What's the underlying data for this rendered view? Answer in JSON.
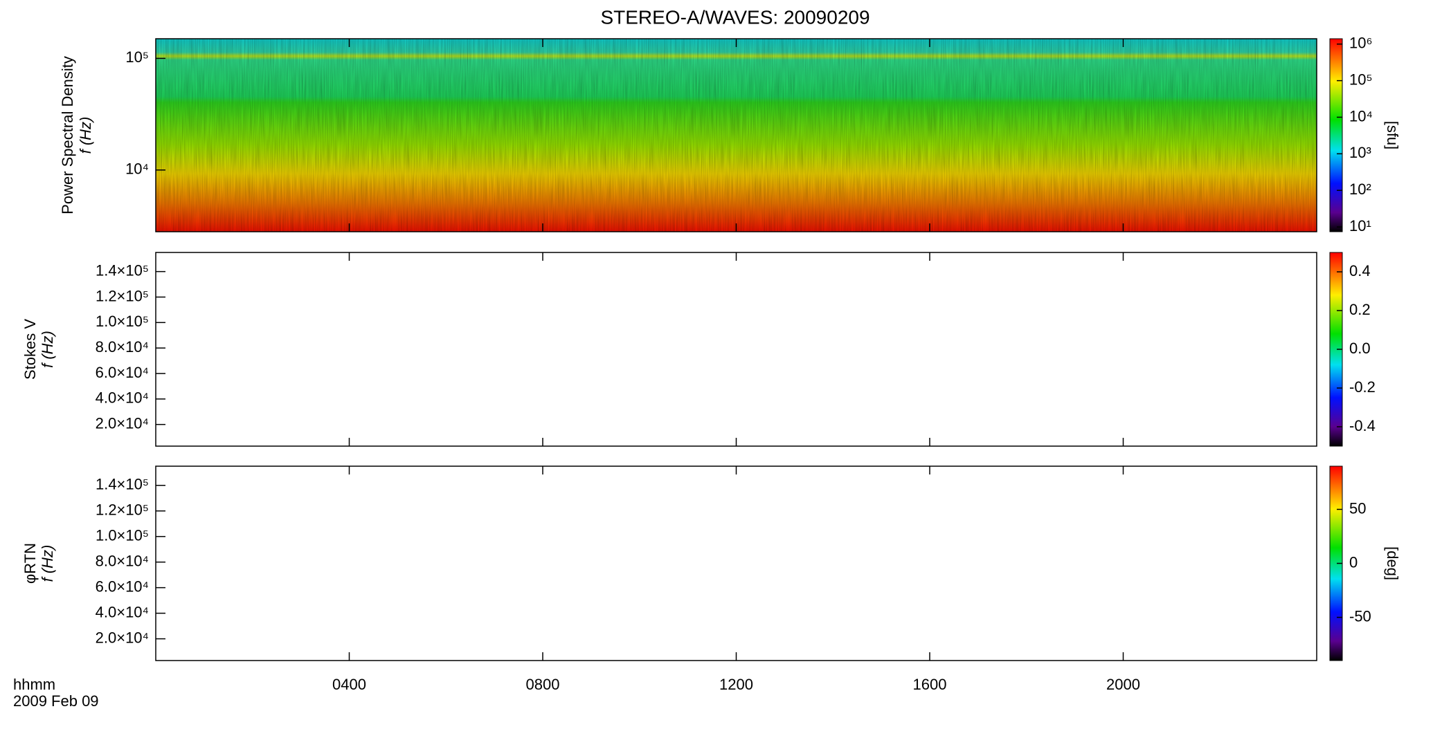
{
  "title": "STEREO-A/WAVES: 20090209",
  "x_label": "hhmm",
  "date_label": "2009 Feb 09",
  "chart_data": [
    {
      "type": "heatmap",
      "y_label": "Power Spectral Density",
      "y_unit": "f (Hz)",
      "log_y": true,
      "ylim": [
        2800,
        150000
      ],
      "yticks": [
        {
          "value": 10000,
          "label": "10⁴"
        },
        {
          "value": 100000,
          "label": "10⁵"
        }
      ],
      "colorbar": {
        "log": true,
        "lim": [
          7.4,
          1400000
        ],
        "label": "[sfu]",
        "ticks": [
          {
            "value": 10,
            "label": "10¹"
          },
          {
            "value": 100,
            "label": "10²"
          },
          {
            "value": 1000,
            "label": "10³"
          },
          {
            "value": 10000,
            "label": "10⁴"
          },
          {
            "value": 100000,
            "label": "10⁵"
          },
          {
            "value": 1000000,
            "label": "10⁶"
          }
        ]
      }
    },
    {
      "type": "heatmap",
      "y_label": "Stokes V",
      "y_unit": "f (Hz)",
      "log_y": false,
      "ylim": [
        3000,
        155000
      ],
      "yticks": [
        {
          "value": 20000,
          "label": "2.0×10⁴"
        },
        {
          "value": 40000,
          "label": "4.0×10⁴"
        },
        {
          "value": 60000,
          "label": "6.0×10⁴"
        },
        {
          "value": 80000,
          "label": "8.0×10⁴"
        },
        {
          "value": 100000,
          "label": "1.0×10⁵"
        },
        {
          "value": 120000,
          "label": "1.2×10⁵"
        },
        {
          "value": 140000,
          "label": "1.4×10⁵"
        }
      ],
      "colorbar": {
        "log": false,
        "lim": [
          -0.5,
          0.5
        ],
        "ticks": [
          {
            "value": -0.4,
            "label": "-0.4"
          },
          {
            "value": -0.2,
            "label": "-0.2"
          },
          {
            "value": 0,
            "label": "0.0"
          },
          {
            "value": 0.2,
            "label": "0.2"
          },
          {
            "value": 0.4,
            "label": "0.4"
          }
        ]
      }
    },
    {
      "type": "heatmap",
      "y_label": "φRTN",
      "y_unit": "f (Hz)",
      "log_y": false,
      "ylim": [
        3000,
        155000
      ],
      "yticks": [
        {
          "value": 20000,
          "label": "2.0×10⁴"
        },
        {
          "value": 40000,
          "label": "4.0×10⁴"
        },
        {
          "value": 60000,
          "label": "6.0×10⁴"
        },
        {
          "value": 80000,
          "label": "8.0×10⁴"
        },
        {
          "value": 100000,
          "label": "1.0×10⁵"
        },
        {
          "value": 120000,
          "label": "1.2×10⁵"
        },
        {
          "value": 140000,
          "label": "1.4×10⁵"
        }
      ],
      "colorbar": {
        "log": false,
        "lim": [
          -90,
          90
        ],
        "label": "[deg]",
        "ticks": [
          -50,
          0,
          50
        ]
      },
      "xlim": [
        0,
        24
      ],
      "xticks": [
        {
          "value": 4,
          "label": "0400"
        },
        {
          "value": 8,
          "label": "0800"
        },
        {
          "value": 12,
          "label": "1200"
        },
        {
          "value": 16,
          "label": "1600"
        },
        {
          "value": 20,
          "label": "2000"
        }
      ]
    }
  ]
}
